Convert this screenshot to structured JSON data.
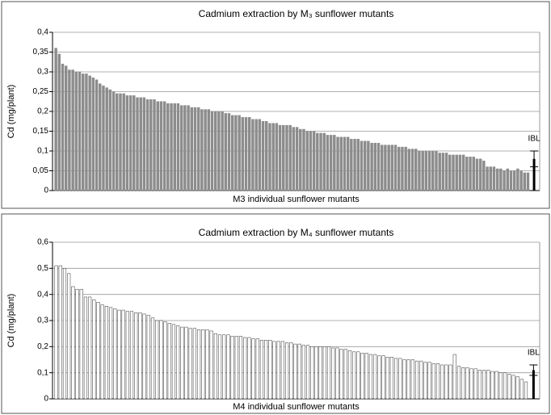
{
  "chart_data": [
    {
      "type": "bar",
      "title": "Cadmium extraction by M₃ sunflower mutants",
      "ylabel": "Cd  (mg/plant)",
      "xlabel": "M3 individual sunflower mutants",
      "ylim": [
        0,
        0.4
      ],
      "yticks": [
        0,
        {
          "value": 0.05,
          "label": "0,05"
        },
        {
          "value": 0.1,
          "label": "0,1"
        },
        {
          "value": 0.15,
          "label": "0,15"
        },
        {
          "value": 0.2,
          "label": "0,2"
        },
        {
          "value": 0.25,
          "label": "0,25"
        },
        {
          "value": 0.3,
          "label": "0,3"
        },
        {
          "value": 0.35,
          "label": "0,35"
        },
        {
          "value": 0.4,
          "label": "0,4"
        }
      ],
      "grid": true,
      "series": [
        {
          "color": "#8c8c8c",
          "edgecolor": "#8c8c8c",
          "values": [
            0.36,
            0.345,
            0.32,
            0.315,
            0.305,
            0.305,
            0.3,
            0.3,
            0.295,
            0.295,
            0.29,
            0.285,
            0.28,
            0.27,
            0.265,
            0.26,
            0.255,
            0.25,
            0.245,
            0.245,
            0.245,
            0.24,
            0.24,
            0.24,
            0.235,
            0.235,
            0.235,
            0.23,
            0.23,
            0.23,
            0.225,
            0.225,
            0.225,
            0.22,
            0.22,
            0.22,
            0.22,
            0.215,
            0.215,
            0.215,
            0.21,
            0.21,
            0.21,
            0.205,
            0.205,
            0.205,
            0.2,
            0.2,
            0.2,
            0.2,
            0.195,
            0.195,
            0.19,
            0.19,
            0.19,
            0.185,
            0.185,
            0.185,
            0.18,
            0.18,
            0.18,
            0.175,
            0.175,
            0.17,
            0.17,
            0.17,
            0.165,
            0.165,
            0.165,
            0.165,
            0.16,
            0.16,
            0.155,
            0.155,
            0.15,
            0.15,
            0.15,
            0.145,
            0.145,
            0.145,
            0.14,
            0.14,
            0.14,
            0.135,
            0.135,
            0.135,
            0.135,
            0.13,
            0.13,
            0.13,
            0.125,
            0.125,
            0.125,
            0.12,
            0.12,
            0.12,
            0.115,
            0.115,
            0.115,
            0.115,
            0.115,
            0.11,
            0.11,
            0.11,
            0.105,
            0.105,
            0.105,
            0.1,
            0.1,
            0.1,
            0.1,
            0.1,
            0.1,
            0.095,
            0.095,
            0.095,
            0.09,
            0.09,
            0.09,
            0.09,
            0.09,
            0.085,
            0.085,
            0.085,
            0.08,
            0.08,
            0.075,
            0.06,
            0.06,
            0.06,
            0.055,
            0.055,
            0.05,
            0.055,
            0.05,
            0.05,
            0.055,
            0.05,
            0.045,
            0.045
          ]
        }
      ],
      "reference": {
        "label": "IBL",
        "value": 0.08,
        "error": 0.02,
        "color": "#000000"
      }
    },
    {
      "type": "bar",
      "title": "Cadmium extraction by M₄ sunflower mutants",
      "ylabel": "Cd  (mg/plant)",
      "xlabel": "M4 individual sunflower mutants",
      "ylim": [
        0,
        0.6
      ],
      "yticks": [
        0,
        {
          "value": 0.1,
          "label": "0,1"
        },
        {
          "value": 0.2,
          "label": "0,2"
        },
        {
          "value": 0.3,
          "label": "0,3"
        },
        {
          "value": 0.4,
          "label": "0,4"
        },
        {
          "value": 0.5,
          "label": "0,5"
        },
        {
          "value": 0.6,
          "label": "0,6"
        }
      ],
      "grid": true,
      "series": [
        {
          "color": "#ffffff",
          "edgecolor": "#333333",
          "values": [
            0.51,
            0.51,
            0.5,
            0.48,
            0.43,
            0.42,
            0.42,
            0.39,
            0.39,
            0.38,
            0.37,
            0.36,
            0.355,
            0.35,
            0.345,
            0.34,
            0.34,
            0.335,
            0.335,
            0.33,
            0.33,
            0.325,
            0.32,
            0.31,
            0.3,
            0.3,
            0.295,
            0.29,
            0.285,
            0.28,
            0.275,
            0.275,
            0.27,
            0.27,
            0.265,
            0.265,
            0.265,
            0.26,
            0.25,
            0.245,
            0.245,
            0.245,
            0.24,
            0.24,
            0.24,
            0.235,
            0.235,
            0.23,
            0.23,
            0.225,
            0.225,
            0.225,
            0.22,
            0.22,
            0.22,
            0.215,
            0.215,
            0.21,
            0.21,
            0.205,
            0.205,
            0.2,
            0.2,
            0.2,
            0.2,
            0.2,
            0.195,
            0.195,
            0.19,
            0.19,
            0.185,
            0.18,
            0.18,
            0.175,
            0.175,
            0.17,
            0.17,
            0.165,
            0.165,
            0.16,
            0.16,
            0.155,
            0.155,
            0.15,
            0.15,
            0.15,
            0.145,
            0.145,
            0.14,
            0.14,
            0.135,
            0.135,
            0.13,
            0.13,
            0.13,
            0.17,
            0.125,
            0.12,
            0.12,
            0.115,
            0.115,
            0.11,
            0.11,
            0.11,
            0.105,
            0.105,
            0.1,
            0.1,
            0.095,
            0.09,
            0.085,
            0.075,
            0.065
          ]
        }
      ],
      "reference": {
        "label": "IBL",
        "value": 0.11,
        "error": 0.02,
        "color": "#000000"
      }
    }
  ]
}
